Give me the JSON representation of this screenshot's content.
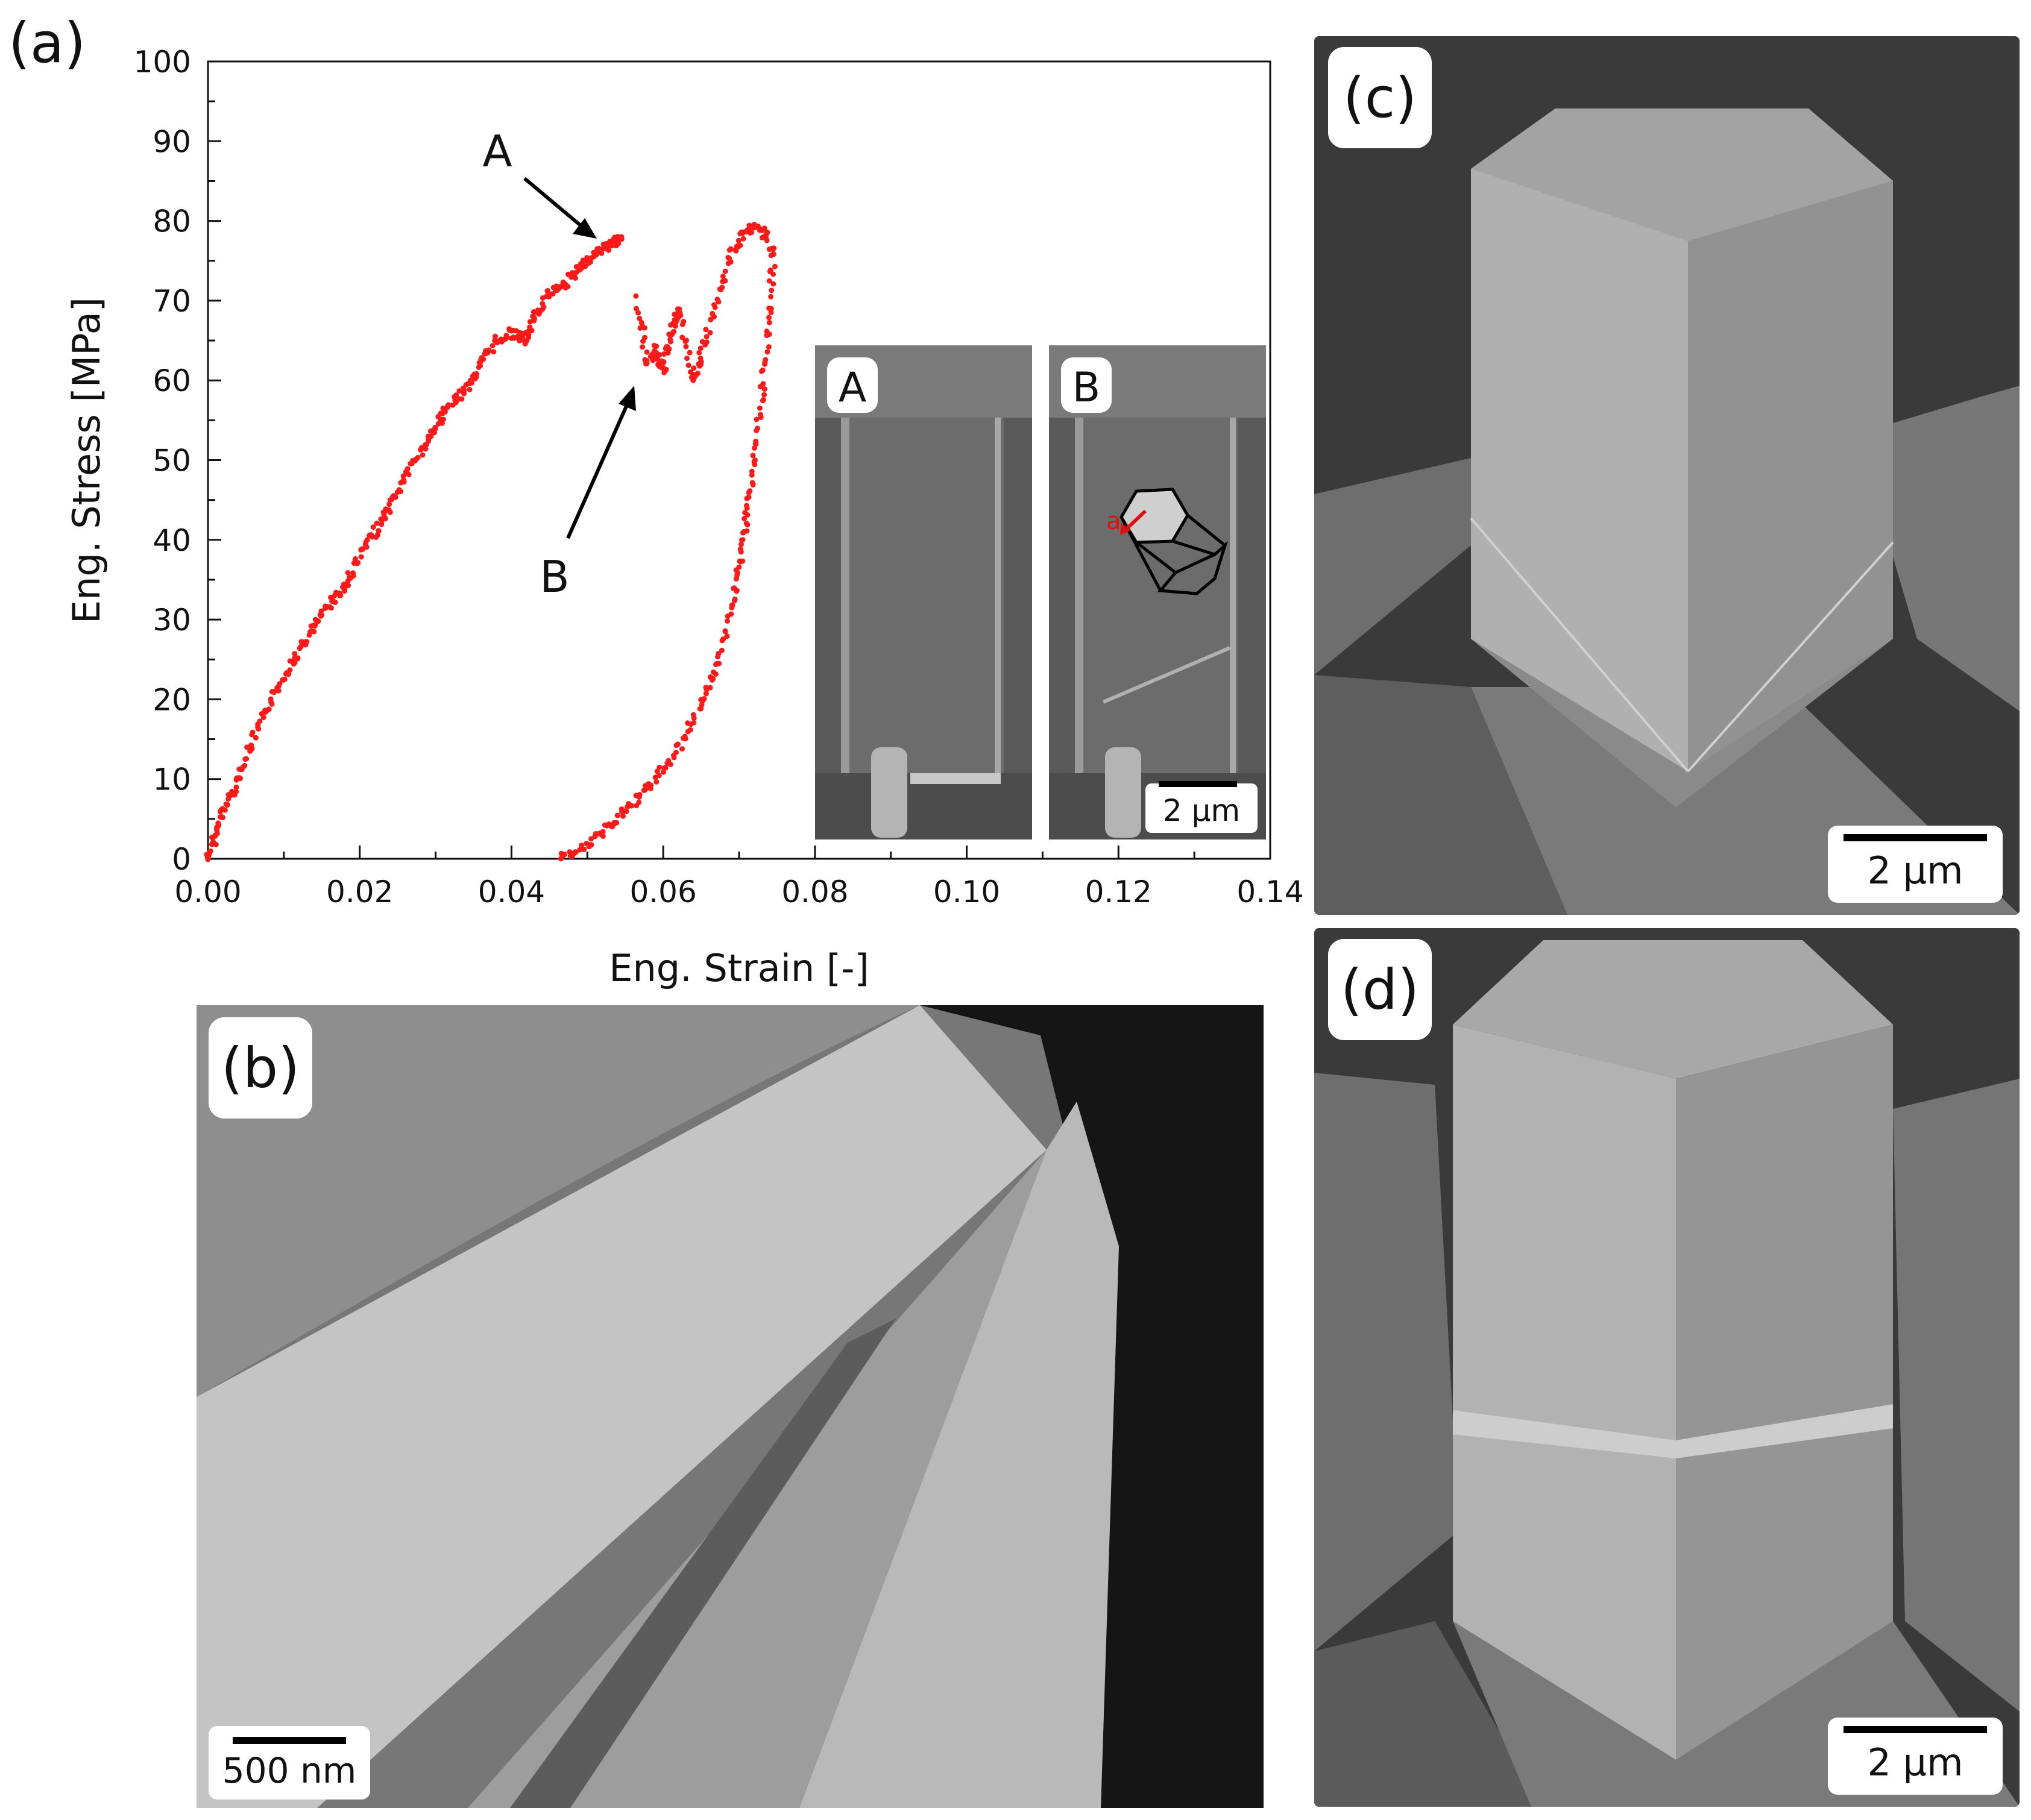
{
  "panels": {
    "a": "(a)",
    "b": "(b)",
    "c": "(c)",
    "d": "(d)"
  },
  "chart_data": {
    "type": "scatter",
    "xlabel": "Eng. Strain [-]",
    "ylabel": "Eng. Stress [MPa]",
    "xlim": [
      0,
      0.14
    ],
    "ylim": [
      0,
      100
    ],
    "x_ticks": [
      "0.00",
      "0.02",
      "0.04",
      "0.06",
      "0.08",
      "0.10",
      "0.12",
      "0.14"
    ],
    "y_ticks": [
      "0",
      "10",
      "20",
      "30",
      "40",
      "50",
      "60",
      "70",
      "80",
      "90",
      "100"
    ],
    "grid": false,
    "series": [
      {
        "color": "#ff1a1a",
        "points": [
          [
            0.0,
            0
          ],
          [
            0.001,
            3
          ],
          [
            0.002,
            6
          ],
          [
            0.004,
            10
          ],
          [
            0.006,
            15
          ],
          [
            0.008,
            19
          ],
          [
            0.01,
            23
          ],
          [
            0.012,
            26
          ],
          [
            0.014,
            29
          ],
          [
            0.016,
            32
          ],
          [
            0.018,
            34
          ],
          [
            0.02,
            38
          ],
          [
            0.022,
            41
          ],
          [
            0.024,
            44
          ],
          [
            0.026,
            48
          ],
          [
            0.028,
            51
          ],
          [
            0.03,
            54
          ],
          [
            0.032,
            57
          ],
          [
            0.034,
            59
          ],
          [
            0.036,
            62
          ],
          [
            0.038,
            65
          ],
          [
            0.04,
            66
          ],
          [
            0.042,
            65
          ],
          [
            0.043,
            68
          ],
          [
            0.045,
            71
          ],
          [
            0.047,
            72
          ],
          [
            0.049,
            74
          ],
          [
            0.051,
            76
          ],
          [
            0.053,
            77
          ],
          [
            0.0545,
            78
          ]
        ]
      },
      {
        "color": "#ff1a1a",
        "points": [
          [
            0.0565,
            70
          ],
          [
            0.058,
            62
          ],
          [
            0.059,
            64
          ],
          [
            0.06,
            61
          ],
          [
            0.061,
            66
          ],
          [
            0.062,
            69
          ],
          [
            0.064,
            60
          ],
          [
            0.065,
            63
          ],
          [
            0.067,
            70
          ],
          [
            0.069,
            76
          ],
          [
            0.071,
            79
          ],
          [
            0.073,
            79
          ],
          [
            0.0745,
            76
          ],
          [
            0.074,
            67
          ],
          [
            0.073,
            58
          ],
          [
            0.072,
            50
          ],
          [
            0.071,
            43
          ],
          [
            0.07,
            37
          ],
          [
            0.069,
            31
          ],
          [
            0.067,
            24
          ],
          [
            0.065,
            19
          ],
          [
            0.062,
            14
          ],
          [
            0.059,
            10
          ],
          [
            0.056,
            7
          ],
          [
            0.053,
            4
          ],
          [
            0.05,
            2
          ],
          [
            0.0465,
            0
          ]
        ]
      }
    ],
    "annotations": [
      {
        "text": "A",
        "x": 0.053,
        "y": 78
      },
      {
        "text": "B",
        "x": 0.057,
        "y": 61
      }
    ],
    "inset_labels": [
      "A",
      "B"
    ],
    "inset_scale": "2 µm"
  },
  "scales": {
    "b": "500 nm",
    "c": "2 µm",
    "d": "2 µm"
  }
}
